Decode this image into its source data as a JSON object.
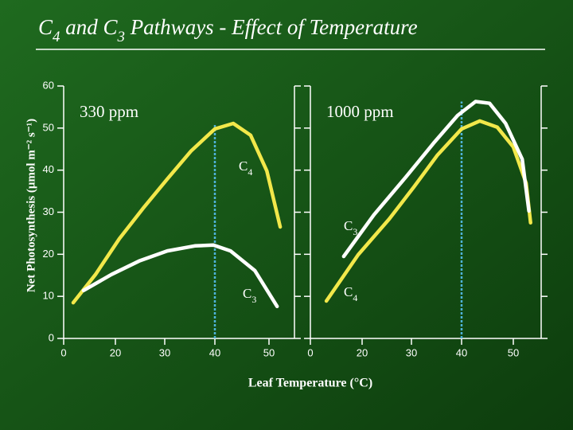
{
  "title": "C4 and C3 Pathways - Effect of Temperature",
  "y_label": "Net Photosynthesis (μmol m⁻² s⁻¹)",
  "x_label": "Leaf Temperature (°C)",
  "chart_data": [
    {
      "type": "line",
      "subtitle": "330 ppm",
      "xlim": [
        0,
        55
      ],
      "xticks": [
        0,
        20,
        30,
        40,
        50
      ],
      "ylim": [
        0,
        60
      ],
      "yticks": [
        0,
        10,
        20,
        30,
        40,
        50,
        60
      ],
      "vline": 40,
      "vline_color": "#4fb3d9",
      "series": [
        {
          "name": "C4",
          "color": "#f2e84a",
          "x": [
            3.7,
            12.3,
            20.8,
            25.6,
            30.5,
            35.2,
            40,
            43.4,
            46.6,
            49.6,
            52.2
          ],
          "values": [
            8.5,
            15.2,
            23.7,
            30.9,
            37.9,
            44.5,
            49.8,
            51.1,
            48.3,
            39.8,
            26.5
          ]
        },
        {
          "name": "C3",
          "color": "#ffffff",
          "x": [
            7.7,
            18.5,
            24.8,
            30.5,
            36,
            39.7,
            42.9,
            47.4,
            51.6
          ],
          "values": [
            11.4,
            15.2,
            18.4,
            20.8,
            22,
            22.2,
            20.8,
            16.1,
            7.6
          ]
        }
      ]
    },
    {
      "type": "line",
      "subtitle": "1000 ppm",
      "xlim": [
        0,
        55
      ],
      "xticks": [
        0,
        20,
        30,
        40,
        50
      ],
      "ylim": [
        0,
        60
      ],
      "yticks": [
        0,
        10,
        20,
        30,
        40,
        50,
        60
      ],
      "vline": 40,
      "vline_color": "#4fb3d9",
      "series": [
        {
          "name": "C4",
          "color": "#f2e84a",
          "x": [
            6.2,
            18.5,
            25.5,
            30.5,
            35.2,
            40,
            43.5,
            46.9,
            50,
            52.3,
            53.1
          ],
          "values": [
            8.9,
            19.9,
            28.4,
            36,
            43.6,
            49.8,
            51.7,
            50.2,
            45.5,
            36.9,
            27.5
          ]
        },
        {
          "name": "C3",
          "color": "#ffffff",
          "x": [
            12.9,
            22.4,
            28.9,
            34.4,
            39.2,
            42.7,
            45.4,
            48.5,
            51.6,
            52.8
          ],
          "values": [
            19.5,
            29.4,
            38.4,
            46.4,
            53,
            56.3,
            55.9,
            51.1,
            42.6,
            30.3
          ]
        }
      ]
    }
  ]
}
